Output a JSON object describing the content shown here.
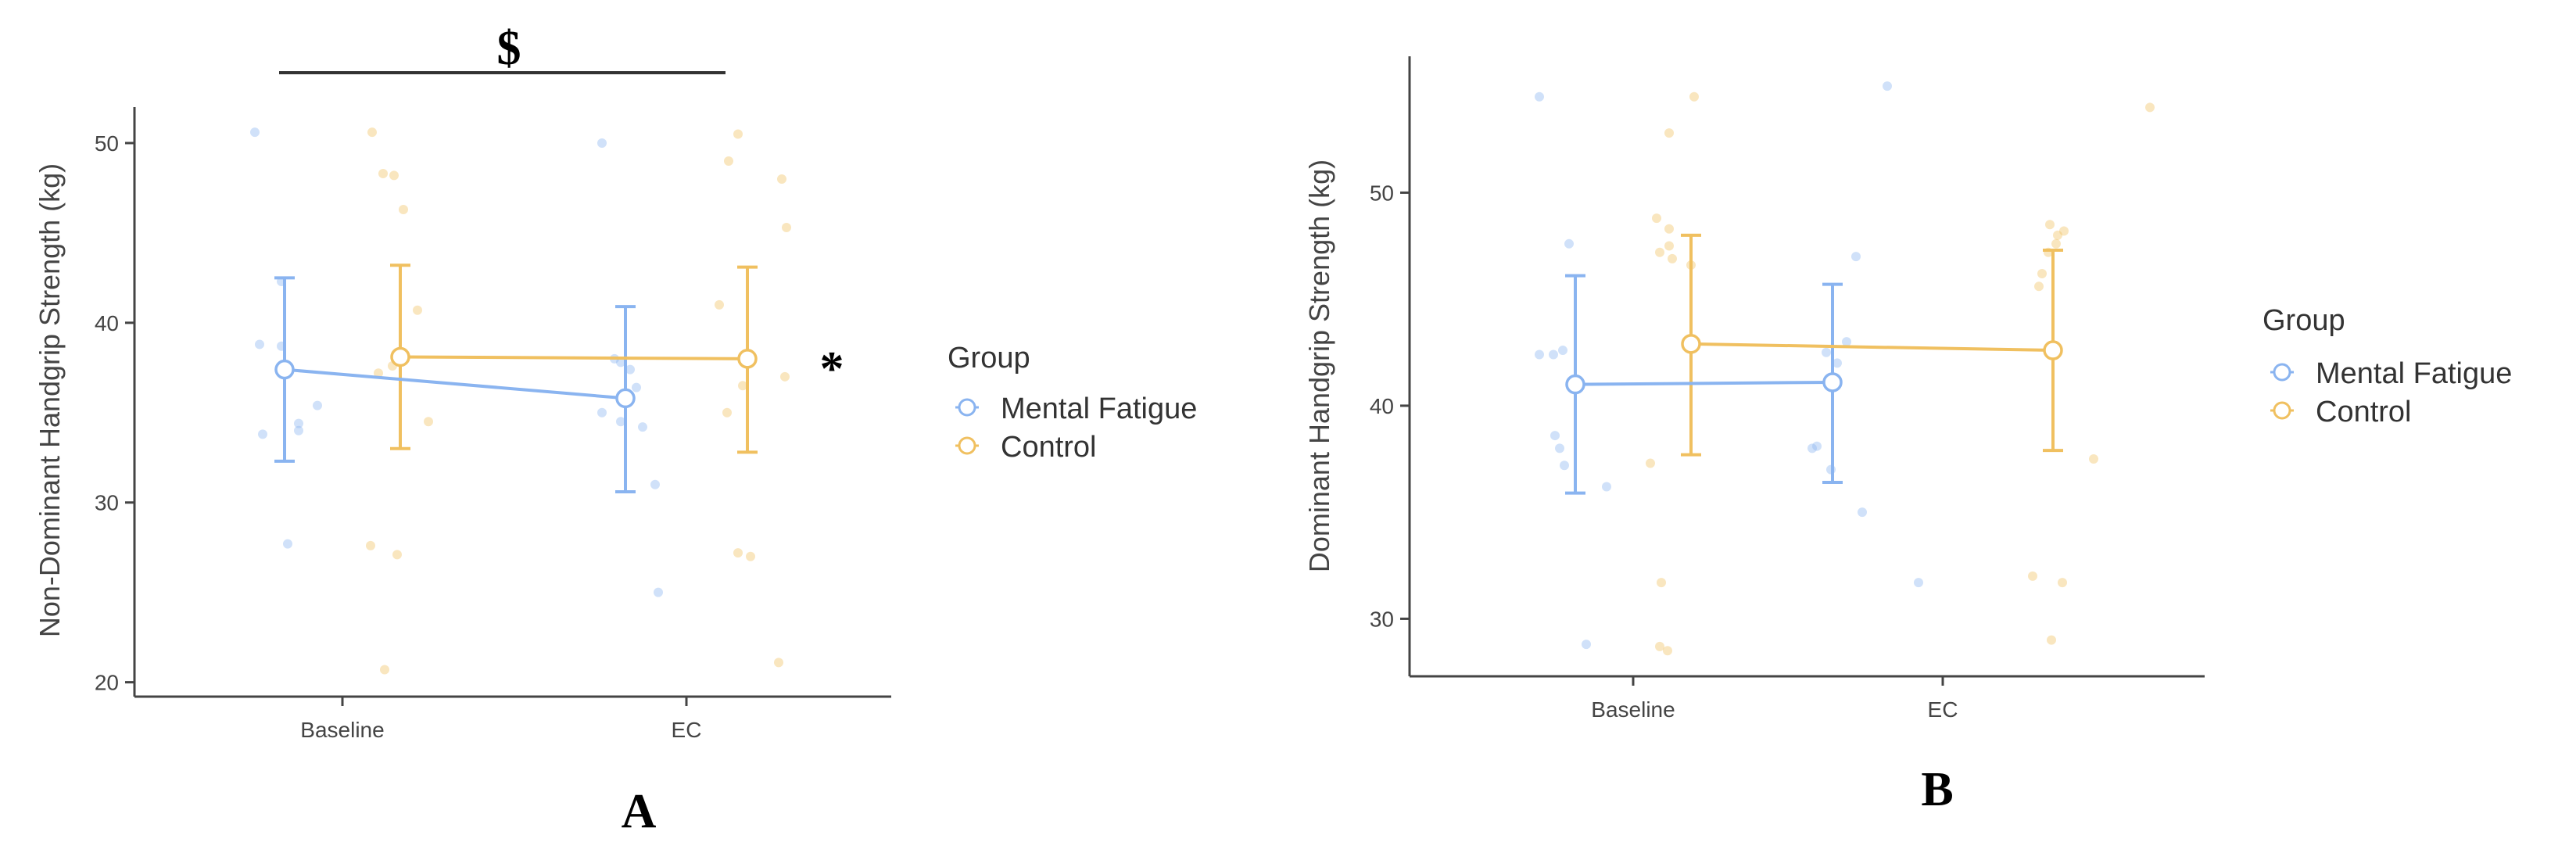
{
  "figure": {
    "colors": {
      "mental_fatigue": "#8AB4F0",
      "control": "#F0C060",
      "axis": "#444444"
    },
    "panels": [
      {
        "id": "A",
        "panel_label": "A",
        "ylabel": "Non-Dominant Handgrip Strength (kg)",
        "annotations": {
          "bracket_symbol": "$",
          "star_symbol": "*"
        }
      },
      {
        "id": "B",
        "panel_label": "B",
        "ylabel": "Dominant Handgrip Strength (kg)",
        "annotations": {}
      }
    ]
  },
  "chart_data": [
    {
      "type": "line",
      "panel": "A",
      "title": "",
      "xlabel": "",
      "ylabel": "Non-Dominant Handgrip Strength (kg)",
      "categories": [
        "Baseline",
        "EC"
      ],
      "ylim": [
        19.2,
        52
      ],
      "yticks": [
        20,
        30,
        40,
        50
      ],
      "grid": false,
      "legend": {
        "title": "Group",
        "placement": "right",
        "entries": [
          "Mental Fatigue",
          "Control"
        ]
      },
      "series": [
        {
          "name": "Mental Fatigue",
          "means": [
            37.4,
            35.8
          ],
          "sd_low": [
            32.3,
            30.6
          ],
          "sd_high": [
            42.5,
            40.9
          ],
          "raw_points": [
            [
              50.6,
              42.3,
              38.8,
              38.7,
              35.4,
              34.4,
              34.0,
              33.8,
              27.7
            ],
            [
              50.0,
              38.0,
              37.8,
              37.4,
              36.4,
              35.0,
              34.5,
              34.2,
              31.0,
              25.0
            ]
          ]
        },
        {
          "name": "Control",
          "means": [
            38.1,
            38.0
          ],
          "sd_low": [
            33.0,
            32.8
          ],
          "sd_high": [
            43.2,
            43.1
          ],
          "raw_points": [
            [
              50.6,
              48.3,
              48.2,
              46.3,
              40.7,
              37.6,
              37.2,
              34.5,
              27.6,
              27.1,
              20.7
            ],
            [
              50.5,
              49.0,
              48.0,
              45.3,
              41.0,
              37.0,
              36.5,
              35.0,
              27.2,
              27.0,
              21.1
            ]
          ]
        }
      ],
      "annotations": [
        {
          "text": "$",
          "type": "bracket",
          "from": "Baseline",
          "to": "EC"
        },
        {
          "text": "*",
          "type": "marker",
          "at": "EC"
        }
      ]
    },
    {
      "type": "line",
      "panel": "B",
      "title": "",
      "xlabel": "",
      "ylabel": "Dominant Handgrip Strength (kg)",
      "categories": [
        "Baseline",
        "EC"
      ],
      "ylim": [
        27.3,
        56.4
      ],
      "yticks": [
        30,
        40,
        50
      ],
      "grid": false,
      "legend": {
        "title": "Group",
        "placement": "right",
        "entries": [
          "Mental Fatigue",
          "Control"
        ]
      },
      "series": [
        {
          "name": "Mental Fatigue",
          "means": [
            41.0,
            41.1
          ],
          "sd_low": [
            35.9,
            36.4
          ],
          "sd_high": [
            46.1,
            45.7
          ],
          "raw_points": [
            [
              54.5,
              47.6,
              42.6,
              42.4,
              42.4,
              38.6,
              38.0,
              37.2,
              36.2,
              28.8
            ],
            [
              55.0,
              47.0,
              43.0,
              42.5,
              42.0,
              38.1,
              38.0,
              37.0,
              35.0,
              31.7
            ]
          ]
        },
        {
          "name": "Control",
          "means": [
            42.9,
            42.6
          ],
          "sd_low": [
            37.7,
            37.9
          ],
          "sd_high": [
            48.0,
            47.3
          ],
          "raw_points": [
            [
              54.5,
              52.8,
              48.8,
              48.3,
              47.5,
              47.2,
              46.9,
              46.6,
              37.3,
              31.7,
              28.7,
              28.5
            ],
            [
              54.0,
              48.5,
              48.2,
              48.0,
              47.6,
              47.2,
              46.2,
              45.6,
              37.5,
              32.0,
              31.7,
              29.0
            ]
          ]
        }
      ],
      "annotations": []
    }
  ]
}
